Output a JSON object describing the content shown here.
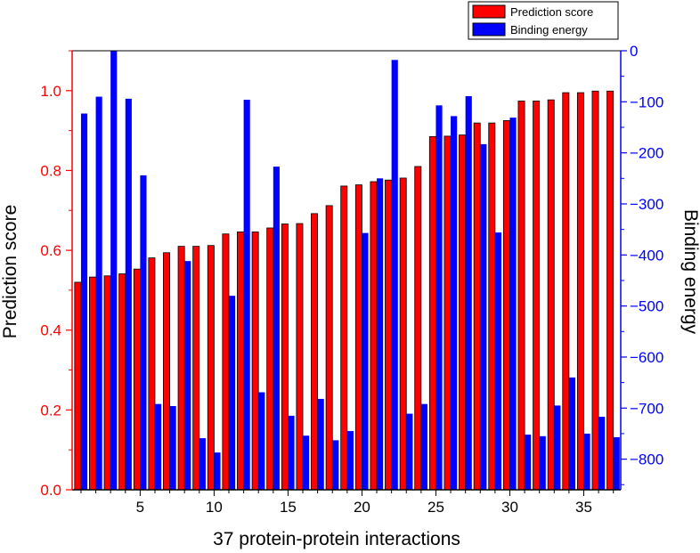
{
  "chart_data": {
    "type": "bar",
    "title": "",
    "xlabel": "37 protein-protein interactions",
    "ylabel": "Prediction score",
    "y2label": "Binding energy",
    "x": [
      1,
      2,
      3,
      4,
      5,
      6,
      7,
      8,
      9,
      10,
      11,
      12,
      13,
      14,
      15,
      16,
      17,
      18,
      19,
      20,
      21,
      22,
      23,
      24,
      25,
      26,
      27,
      28,
      29,
      30,
      31,
      32,
      33,
      34,
      35,
      36,
      37
    ],
    "xlim": [
      0.4,
      37.5
    ],
    "xticks": [
      5,
      10,
      15,
      20,
      25,
      30,
      35
    ],
    "ylim": [
      0,
      1.1
    ],
    "yticks": [
      0.0,
      0.2,
      0.4,
      0.6,
      0.8,
      1.0
    ],
    "y2lim": [
      -860,
      0
    ],
    "y2ticks": [
      0,
      -100,
      -200,
      -300,
      -400,
      -500,
      -600,
      -700,
      -800
    ],
    "legend_position": "top-right",
    "grid": false,
    "series": [
      {
        "name": "Prediction score",
        "axis": "left",
        "color": "#ff0000",
        "values": [
          0.52,
          0.533,
          0.536,
          0.541,
          0.553,
          0.581,
          0.594,
          0.61,
          0.61,
          0.612,
          0.641,
          0.646,
          0.646,
          0.656,
          0.666,
          0.667,
          0.692,
          0.712,
          0.761,
          0.764,
          0.772,
          0.776,
          0.781,
          0.81,
          0.885,
          0.886,
          0.889,
          0.919,
          0.919,
          0.925,
          0.974,
          0.974,
          0.977,
          0.995,
          0.995,
          0.999,
          0.999
        ]
      },
      {
        "name": "Binding energy",
        "axis": "right",
        "color": "#0000ff",
        "values": [
          -123,
          -90,
          2,
          -94,
          -244,
          -692,
          -696,
          -412,
          -759,
          -787,
          -480,
          -96,
          -669,
          -227,
          -715,
          -754,
          -682,
          -763,
          -745,
          -357,
          -250,
          -18,
          -711,
          -692,
          -107,
          -128,
          -89,
          -183,
          -356,
          -131,
          -752,
          -755,
          -695,
          -640,
          -750,
          -717,
          -757
        ]
      }
    ]
  },
  "colors": {
    "left_axis": "#ff0000",
    "right_axis": "#0000ff",
    "frame": "#000000"
  }
}
